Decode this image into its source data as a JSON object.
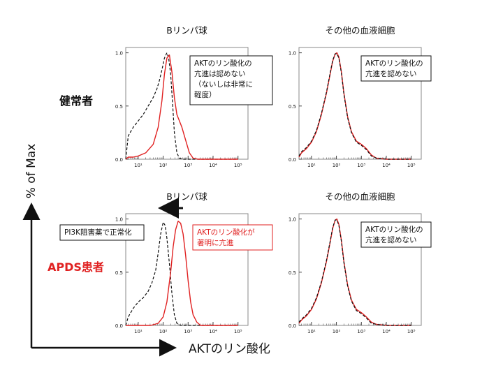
{
  "figure": {
    "y_axis_label": "% of Max",
    "x_axis_label": "AKTのリン酸化",
    "row_labels": [
      {
        "text": "健常者",
        "color": "#111111"
      },
      {
        "text": "APDS患者",
        "color": "#e02020"
      }
    ],
    "colors": {
      "black": "#111111",
      "red": "#e02020"
    }
  },
  "chart_data": [
    {
      "type": "line",
      "title": "Bリンパ球",
      "annotation": {
        "lines": [
          "AKTのリン酸化の",
          "亢進は認めない",
          "（ないしは非常に",
          "軽度）"
        ],
        "color": "#111111"
      },
      "arrow": false,
      "yticks": [
        "0.0",
        "0.5",
        "1.0"
      ],
      "xticks": [
        "10¹",
        "10²",
        "10³",
        "10⁴",
        "10⁵"
      ],
      "xlim": [
        0.5,
        5.4
      ],
      "ylim": [
        0,
        1.05
      ],
      "series": [
        {
          "style": "dashed",
          "color": "#111111",
          "x": [
            0.5,
            0.6,
            0.8,
            1.0,
            1.2,
            1.4,
            1.6,
            1.75,
            1.85,
            1.95,
            2.05,
            2.15,
            2.22,
            2.3,
            2.38,
            2.45,
            2.55,
            2.65,
            2.8,
            3.0,
            3.5,
            4.0,
            5.0
          ],
          "y": [
            0.0,
            0.22,
            0.3,
            0.36,
            0.42,
            0.5,
            0.58,
            0.66,
            0.74,
            0.84,
            0.95,
            1.0,
            0.95,
            0.8,
            0.52,
            0.25,
            0.06,
            0.01,
            0.0,
            0.0,
            0.0,
            0.0,
            0.0
          ]
        },
        {
          "style": "solid",
          "color": "#e02020",
          "x": [
            0.5,
            0.6,
            0.8,
            1.0,
            1.3,
            1.6,
            1.8,
            1.95,
            2.05,
            2.15,
            2.25,
            2.35,
            2.45,
            2.55,
            2.65,
            2.75,
            2.9,
            3.05,
            3.2,
            3.4,
            4.0,
            5.0
          ],
          "y": [
            0.0,
            0.02,
            0.02,
            0.03,
            0.06,
            0.14,
            0.3,
            0.55,
            0.8,
            0.95,
            0.98,
            0.82,
            0.58,
            0.42,
            0.36,
            0.3,
            0.18,
            0.06,
            0.01,
            0.0,
            0.0,
            0.0
          ]
        }
      ]
    },
    {
      "type": "line",
      "title": "その他の血液細胞",
      "annotation": {
        "lines": [
          "AKTのリン酸化の",
          "亢進を認めない"
        ],
        "color": "#111111"
      },
      "arrow": false,
      "yticks": [
        "0.0",
        "0.5",
        "1.0"
      ],
      "xticks": [
        "10¹",
        "10²",
        "10³",
        "10⁴",
        "10⁵"
      ],
      "xlim": [
        0.5,
        5.4
      ],
      "ylim": [
        0,
        1.05
      ],
      "series": [
        {
          "style": "solid",
          "color": "#e02020",
          "x": [
            0.5,
            0.6,
            0.8,
            1.0,
            1.2,
            1.4,
            1.6,
            1.75,
            1.85,
            1.95,
            2.02,
            2.1,
            2.2,
            2.3,
            2.45,
            2.6,
            2.8,
            3.0,
            3.2,
            3.4,
            3.6,
            4.0,
            5.0
          ],
          "y": [
            0.02,
            0.06,
            0.1,
            0.16,
            0.26,
            0.42,
            0.62,
            0.8,
            0.92,
            0.99,
            1.0,
            0.96,
            0.82,
            0.62,
            0.4,
            0.26,
            0.17,
            0.14,
            0.1,
            0.04,
            0.01,
            0.0,
            0.0
          ]
        },
        {
          "style": "dashed",
          "color": "#111111",
          "x": [
            0.5,
            0.6,
            0.8,
            1.0,
            1.2,
            1.4,
            1.6,
            1.75,
            1.85,
            1.95,
            2.02,
            2.1,
            2.2,
            2.3,
            2.45,
            2.6,
            2.8,
            3.0,
            3.2,
            3.4,
            3.6,
            4.0,
            5.0
          ],
          "y": [
            0.03,
            0.07,
            0.11,
            0.17,
            0.27,
            0.43,
            0.63,
            0.81,
            0.93,
            0.99,
            0.99,
            0.95,
            0.81,
            0.61,
            0.39,
            0.25,
            0.16,
            0.13,
            0.09,
            0.03,
            0.01,
            0.0,
            0.0
          ]
        }
      ]
    },
    {
      "type": "line",
      "title": "Bリンパ球",
      "annotation": {
        "lines": [
          "PI3K阻害薬で正常化"
        ],
        "color": "#111111"
      },
      "annotation2": {
        "lines": [
          "AKTのリン酸化が",
          "著明に亢進"
        ],
        "color": "#e02020"
      },
      "arrow": true,
      "yticks": [
        "0.0",
        "0.5",
        "1.0"
      ],
      "xticks": [
        "10¹",
        "10²",
        "10³",
        "10⁴",
        "10⁵"
      ],
      "xlim": [
        0.5,
        5.4
      ],
      "ylim": [
        0,
        1.05
      ],
      "series": [
        {
          "style": "dashed",
          "color": "#111111",
          "x": [
            0.5,
            0.6,
            0.8,
            1.0,
            1.2,
            1.4,
            1.55,
            1.7,
            1.8,
            1.9,
            2.0,
            2.08,
            2.15,
            2.25,
            2.35,
            2.45,
            2.55,
            2.7,
            3.0,
            4.0,
            5.0
          ],
          "y": [
            0.0,
            0.08,
            0.16,
            0.22,
            0.26,
            0.32,
            0.4,
            0.52,
            0.68,
            0.86,
            0.97,
            0.94,
            0.82,
            0.58,
            0.3,
            0.1,
            0.02,
            0.0,
            0.0,
            0.0,
            0.0
          ]
        },
        {
          "style": "solid",
          "color": "#e02020",
          "x": [
            0.5,
            1.0,
            1.5,
            1.8,
            2.0,
            2.15,
            2.3,
            2.4,
            2.5,
            2.6,
            2.7,
            2.8,
            2.9,
            3.0,
            3.1,
            3.2,
            3.35,
            3.5,
            4.0,
            5.0
          ],
          "y": [
            0.0,
            0.0,
            0.0,
            0.02,
            0.08,
            0.22,
            0.5,
            0.74,
            0.9,
            0.98,
            0.96,
            0.86,
            0.66,
            0.42,
            0.22,
            0.1,
            0.03,
            0.0,
            0.0,
            0.0
          ]
        }
      ]
    },
    {
      "type": "line",
      "title": "その他の血液細胞",
      "annotation": {
        "lines": [
          "AKTのリン酸化の",
          "亢進を認めない"
        ],
        "color": "#111111"
      },
      "arrow": false,
      "yticks": [
        "0.0",
        "0.5",
        "1.0"
      ],
      "xticks": [
        "10¹",
        "10²",
        "10³",
        "10⁴",
        "10⁵"
      ],
      "xlim": [
        0.5,
        5.4
      ],
      "ylim": [
        0,
        1.05
      ],
      "series": [
        {
          "style": "solid",
          "color": "#e02020",
          "x": [
            0.5,
            0.6,
            0.8,
            1.0,
            1.2,
            1.4,
            1.6,
            1.75,
            1.85,
            1.95,
            2.02,
            2.1,
            2.2,
            2.3,
            2.45,
            2.6,
            2.8,
            3.0,
            3.2,
            3.4,
            3.6,
            4.0,
            5.0
          ],
          "y": [
            0.02,
            0.05,
            0.09,
            0.15,
            0.25,
            0.4,
            0.6,
            0.78,
            0.91,
            0.99,
            1.0,
            0.95,
            0.8,
            0.6,
            0.38,
            0.24,
            0.15,
            0.12,
            0.08,
            0.03,
            0.01,
            0.0,
            0.0
          ]
        },
        {
          "style": "dashed",
          "color": "#111111",
          "x": [
            0.5,
            0.6,
            0.8,
            1.0,
            1.2,
            1.4,
            1.6,
            1.75,
            1.85,
            1.95,
            2.02,
            2.1,
            2.2,
            2.3,
            2.45,
            2.6,
            2.8,
            3.0,
            3.2,
            3.4,
            3.6,
            4.0,
            5.0
          ],
          "y": [
            0.03,
            0.06,
            0.1,
            0.16,
            0.26,
            0.41,
            0.61,
            0.79,
            0.92,
            0.99,
            0.99,
            0.94,
            0.79,
            0.59,
            0.37,
            0.23,
            0.14,
            0.11,
            0.07,
            0.02,
            0.01,
            0.0,
            0.0
          ]
        }
      ]
    }
  ]
}
